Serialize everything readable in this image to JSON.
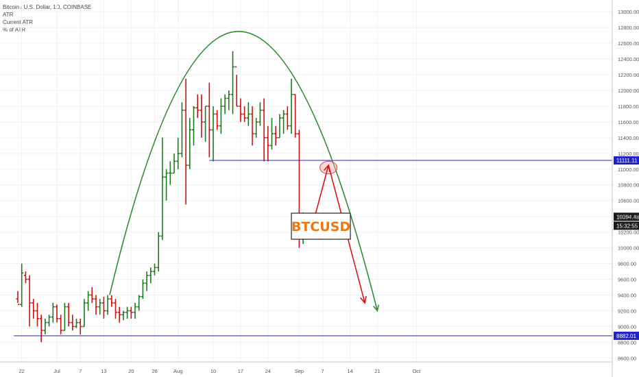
{
  "legend": {
    "title": "Bitcoin / U.S. Dollar, 1D, COINBASE",
    "line2": "ATR",
    "line3": "Current ATR",
    "line4": "% of ATR"
  },
  "watermark": "BTCUSD",
  "colors": {
    "up": "#1b7a1b",
    "down": "#cc1111",
    "level": "#2222cc",
    "arc": "#2e8b2e",
    "arrow": "#dd1111",
    "badge": "#2222cc",
    "price_badge": "#1a1a1a",
    "watermark_text": "#ee7711"
  },
  "chart_data": {
    "type": "ohlc",
    "y_axis_ticks": [
      "13000.00",
      "12800.00",
      "12600.00",
      "12400.00",
      "12200.00",
      "12000.00",
      "11800.00",
      "11600.00",
      "11400.00",
      "11200.00",
      "11000.00",
      "10800.00",
      "10600.00",
      "10400.00",
      "10200.00",
      "10000.00",
      "9800.00",
      "9600.00",
      "9400.00",
      "9200.00",
      "9000.00",
      "8800.00",
      "8600.00"
    ],
    "ylim": [
      8550,
      13150
    ],
    "x_axis_labels": [
      {
        "label": "22",
        "day": -9
      },
      {
        "label": "Jul",
        "day": 0
      },
      {
        "label": "7",
        "day": 6
      },
      {
        "label": "13",
        "day": 12
      },
      {
        "label": "20",
        "day": 19
      },
      {
        "label": "26",
        "day": 25
      },
      {
        "label": "Aug",
        "day": 31
      },
      {
        "label": "10",
        "day": 40
      },
      {
        "label": "17",
        "day": 47
      },
      {
        "label": "24",
        "day": 54
      },
      {
        "label": "Sep",
        "day": 62
      },
      {
        "label": "7",
        "day": 68
      },
      {
        "label": "14",
        "day": 75
      },
      {
        "label": "21",
        "day": 82
      },
      {
        "label": "Oct",
        "day": 92
      }
    ],
    "bars": [
      [
        9350,
        9450,
        9300,
        9280
      ],
      [
        9280,
        9800,
        9250,
        9680
      ],
      [
        9650,
        9700,
        9550,
        9600
      ],
      [
        9600,
        9650,
        9000,
        9300
      ],
      [
        9300,
        9350,
        9100,
        9200
      ],
      [
        9200,
        9300,
        9000,
        9100
      ],
      [
        9100,
        9150,
        8800,
        8950
      ],
      [
        8950,
        9100,
        8900,
        9050
      ],
      [
        9050,
        9150,
        9000,
        9120
      ],
      [
        9120,
        9300,
        9050,
        9250
      ],
      [
        9250,
        9280,
        9050,
        9100
      ],
      [
        9100,
        9150,
        8900,
        8950
      ],
      [
        8950,
        9300,
        8950,
        9250
      ],
      [
        9250,
        9300,
        9000,
        9050
      ],
      [
        9050,
        9150,
        8950,
        9000
      ],
      [
        9000,
        9100,
        8980,
        9050
      ],
      [
        9050,
        9100,
        8900,
        9000
      ],
      [
        9000,
        9350,
        9000,
        9300
      ],
      [
        9300,
        9450,
        9200,
        9400
      ],
      [
        9400,
        9500,
        9300,
        9350
      ],
      [
        9350,
        9400,
        9150,
        9250
      ],
      [
        9250,
        9350,
        9150,
        9300
      ],
      [
        9300,
        9380,
        9100,
        9200
      ],
      [
        9200,
        9400,
        9150,
        9350
      ],
      [
        9350,
        9400,
        9250,
        9300
      ],
      [
        9300,
        9350,
        9100,
        9180
      ],
      [
        9180,
        9250,
        9050,
        9150
      ],
      [
        9150,
        9200,
        9080,
        9180
      ],
      [
        9180,
        9250,
        9100,
        9200
      ],
      [
        9200,
        9250,
        9100,
        9180
      ],
      [
        9180,
        9300,
        9100,
        9250
      ],
      [
        9250,
        9400,
        9200,
        9380
      ],
      [
        9380,
        9600,
        9350,
        9550
      ],
      [
        9550,
        9700,
        9450,
        9650
      ],
      [
        9650,
        9750,
        9550,
        9700
      ],
      [
        9700,
        9800,
        9650,
        9750
      ],
      [
        9750,
        10200,
        9700,
        10150
      ],
      [
        10150,
        11400,
        10100,
        10900
      ],
      [
        10900,
        11000,
        10600,
        10950
      ],
      [
        10950,
        11100,
        10800,
        10950
      ],
      [
        10950,
        11200,
        10950,
        11100
      ],
      [
        11100,
        11400,
        11000,
        11200
      ],
      [
        11200,
        11850,
        11150,
        11750
      ],
      [
        11750,
        12150,
        10550,
        11050
      ],
      [
        11050,
        11650,
        11000,
        11500
      ],
      [
        11500,
        11800,
        11300,
        11780
      ],
      [
        11780,
        11950,
        11650,
        11750
      ],
      [
        11750,
        11950,
        11400,
        11600
      ],
      [
        11600,
        11800,
        11350,
        11800
      ],
      [
        11800,
        12100,
        11150,
        11500
      ],
      [
        11500,
        11800,
        11100,
        11700
      ],
      [
        11700,
        11750,
        11500,
        11550
      ],
      [
        11550,
        11900,
        11450,
        11800
      ],
      [
        11800,
        11950,
        11700,
        11900
      ],
      [
        11900,
        12000,
        11750,
        11950
      ],
      [
        11950,
        12500,
        11700,
        12300
      ],
      [
        12300,
        12200,
        11800,
        11800
      ],
      [
        11800,
        11900,
        11600,
        11700
      ],
      [
        11700,
        11800,
        11600,
        11650
      ],
      [
        11650,
        11850,
        11550,
        11700
      ],
      [
        11700,
        11800,
        11300,
        11450
      ],
      [
        11450,
        11650,
        11400,
        11600
      ],
      [
        11600,
        11850,
        11550,
        11750
      ],
      [
        11750,
        11900,
        11100,
        11400
      ],
      [
        11400,
        11550,
        11100,
        11300
      ],
      [
        11300,
        11650,
        11250,
        11450
      ],
      [
        11450,
        11550,
        11300,
        11400
      ],
      [
        11400,
        11700,
        11400,
        11650
      ],
      [
        11650,
        11750,
        11450,
        11700
      ],
      [
        11700,
        11800,
        11500,
        11550
      ],
      [
        11550,
        12150,
        11450,
        11950
      ],
      [
        11950,
        11950,
        11400,
        11450
      ],
      [
        11450,
        11500,
        10000,
        10200
      ],
      [
        10150,
        10450,
        10050,
        10400
      ]
    ],
    "start_day": -10,
    "lines": [
      {
        "name": "",
        "value": 11111.11,
        "label": "11111.11",
        "x_from_day": 39,
        "extend": "right"
      },
      {
        "name": "",
        "value": 8882.01,
        "label": "8882.01",
        "x_from_day": -11,
        "extend": "right"
      }
    ],
    "current_price": {
      "label": "10394.48",
      "value": 10394.48
    },
    "countdown": {
      "label": "15:32:55"
    },
    "annotations": {
      "arc": {
        "start": {
          "day": 13.5,
          "value": 9400
        },
        "peak": {
          "day": 47,
          "value": 12750
        },
        "end": {
          "day": 82,
          "value": 9200
        }
      },
      "ellipse": {
        "day": 69.5,
        "value": 11020,
        "rx_days": 2.2,
        "ry_value": 80
      },
      "arrow_up": {
        "from": {
          "day": 66,
          "value": 10400
        },
        "to": {
          "day": 69.5,
          "value": 11050
        }
      },
      "arrow_down": {
        "from": {
          "day": 69.5,
          "value": 11050
        },
        "to": {
          "day": 78.8,
          "value": 9300
        }
      }
    },
    "grid": true,
    "y_axis_side": "right"
  }
}
